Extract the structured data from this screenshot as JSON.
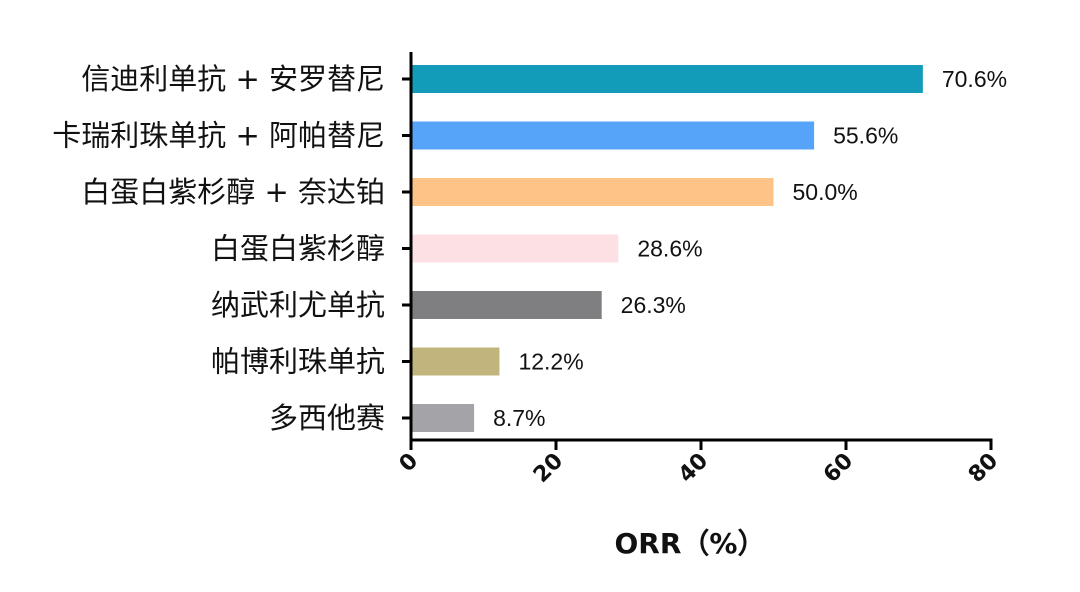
{
  "chart_data": {
    "type": "bar",
    "orientation": "horizontal",
    "categories": [
      "信迪利单抗 + 安罗替尼",
      "卡瑞利珠单抗 + 阿帕替尼",
      "白蛋白紫杉醇 + 奈达铂",
      "白蛋白紫杉醇",
      "纳武利尤单抗",
      "帕博利珠单抗",
      "多西他赛"
    ],
    "values": [
      70.6,
      55.6,
      50.0,
      28.6,
      26.3,
      12.2,
      8.7
    ],
    "value_labels": [
      "70.6%",
      "55.6%",
      "50.0%",
      "28.6%",
      "26.3%",
      "12.2%",
      "8.7%"
    ],
    "colors": [
      "#129cb9",
      "#55a4f9",
      "#fec386",
      "#fde0e3",
      "#7f7e80",
      "#c1b57d",
      "#a4a3a8"
    ],
    "xlabel": "ORR（%）",
    "xlim": [
      0,
      80
    ],
    "xticks": [
      "0",
      "20",
      "40",
      "60",
      "80"
    ],
    "grid": false
  }
}
